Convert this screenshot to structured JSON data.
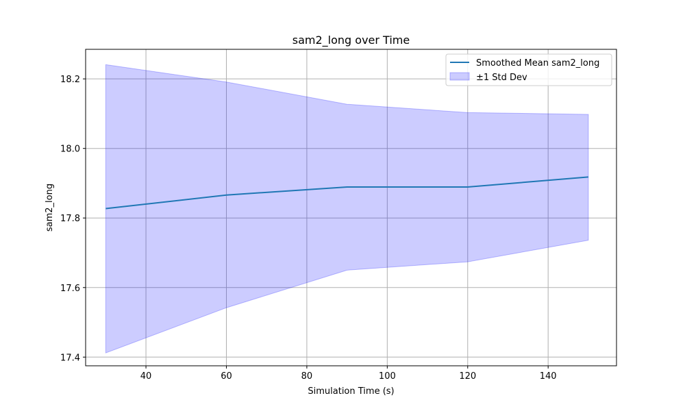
{
  "chart_data": {
    "type": "line",
    "title": "sam2_long over Time",
    "xlabel": "Simulation Time (s)",
    "ylabel": "sam2_long",
    "xlim": [
      25,
      157
    ],
    "ylim": [
      17.375,
      18.285
    ],
    "x_ticks": [
      40,
      60,
      80,
      100,
      120,
      140
    ],
    "y_ticks": [
      17.4,
      17.6,
      17.8,
      18.0,
      18.2
    ],
    "y_tick_labels": [
      "17.4",
      "17.6",
      "17.8",
      "18.0",
      "18.2"
    ],
    "grid": true,
    "legend_position": "top-right",
    "x": [
      30,
      60,
      90,
      120,
      150
    ],
    "series": [
      {
        "name": "Smoothed Mean sam2_long",
        "kind": "line",
        "color": "#1f77b4",
        "values": [
          17.827,
          17.866,
          17.889,
          17.889,
          17.918
        ]
      },
      {
        "name": "±1 Std Dev",
        "kind": "band",
        "color": "#0000ff",
        "lower": [
          17.412,
          17.542,
          17.65,
          17.674,
          17.736
        ],
        "upper": [
          18.241,
          18.191,
          18.127,
          18.103,
          18.098
        ]
      }
    ]
  }
}
